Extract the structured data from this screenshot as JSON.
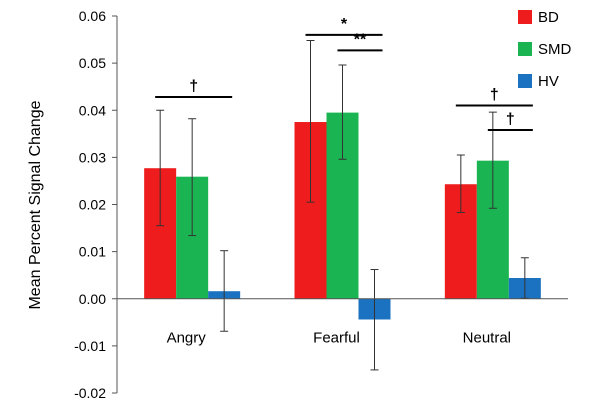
{
  "chart_data": {
    "type": "bar",
    "title": "",
    "xlabel": "",
    "ylabel": "Mean Percent Signal Change",
    "ylim": [
      -0.02,
      0.06
    ],
    "yticks": [
      "-0.02",
      "-0.01",
      "0.00",
      "0.01",
      "0.02",
      "0.03",
      "0.04",
      "0.05",
      "0.06"
    ],
    "categories": [
      "Angry",
      "Fearful",
      "Neutral"
    ],
    "series": [
      {
        "name": "BD",
        "color": "#ee1c1c",
        "values": [
          0.0277,
          0.0375,
          0.0243
        ],
        "err_low": [
          0.0155,
          0.0205,
          0.0183
        ],
        "err_high": [
          0.04,
          0.0548,
          0.0305
        ]
      },
      {
        "name": "SMD",
        "color": "#1ab552",
        "values": [
          0.0259,
          0.0395,
          0.0293
        ],
        "err_low": [
          0.0134,
          0.0296,
          0.0192
        ],
        "err_high": [
          0.0382,
          0.0496,
          0.0396
        ]
      },
      {
        "name": "HV",
        "color": "#1a72c0",
        "values": [
          0.0016,
          -0.0044,
          0.0044
        ],
        "err_low": [
          -0.0069,
          -0.0151,
          0.0001
        ],
        "err_high": [
          0.0102,
          0.0062,
          0.0087
        ]
      }
    ],
    "legend_position": "top-right",
    "grid": false,
    "significance": [
      {
        "category": "Angry",
        "from": "BD",
        "to": "HV",
        "label": "†",
        "y": 0.0428
      },
      {
        "category": "Fearful",
        "from": "BD",
        "to": "HV",
        "label": "*",
        "y": 0.056
      },
      {
        "category": "Fearful",
        "from": "SMD",
        "to": "HV",
        "label": "**",
        "y": 0.0527
      },
      {
        "category": "Neutral",
        "from": "BD",
        "to": "HV",
        "label": "†",
        "y": 0.041
      },
      {
        "category": "Neutral",
        "from": "SMD",
        "to": "HV",
        "label": "†",
        "y": 0.0358
      }
    ]
  }
}
